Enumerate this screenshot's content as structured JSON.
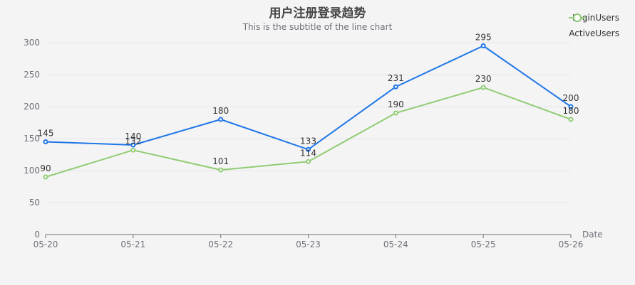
{
  "chart_data": {
    "type": "line",
    "title": "用户注册登录趋势",
    "subtitle": "This is the subtitle of the line chart",
    "xlabel": "Date",
    "ylabel": "",
    "categories": [
      "05-20",
      "05-21",
      "05-22",
      "05-23",
      "05-24",
      "05-25",
      "05-26"
    ],
    "ylim": [
      0,
      300
    ],
    "yticks": [
      0,
      50,
      100,
      150,
      200,
      250,
      300
    ],
    "grid": true,
    "legend_position": "top-right",
    "series": [
      {
        "name": "LoginUsers",
        "color": "#1f77e7",
        "values": [
          145,
          140,
          180,
          133,
          231,
          295,
          200
        ]
      },
      {
        "name": "ActiveUsers",
        "color": "#91cc75",
        "values": [
          90,
          132,
          101,
          114,
          190,
          230,
          180
        ]
      }
    ]
  }
}
